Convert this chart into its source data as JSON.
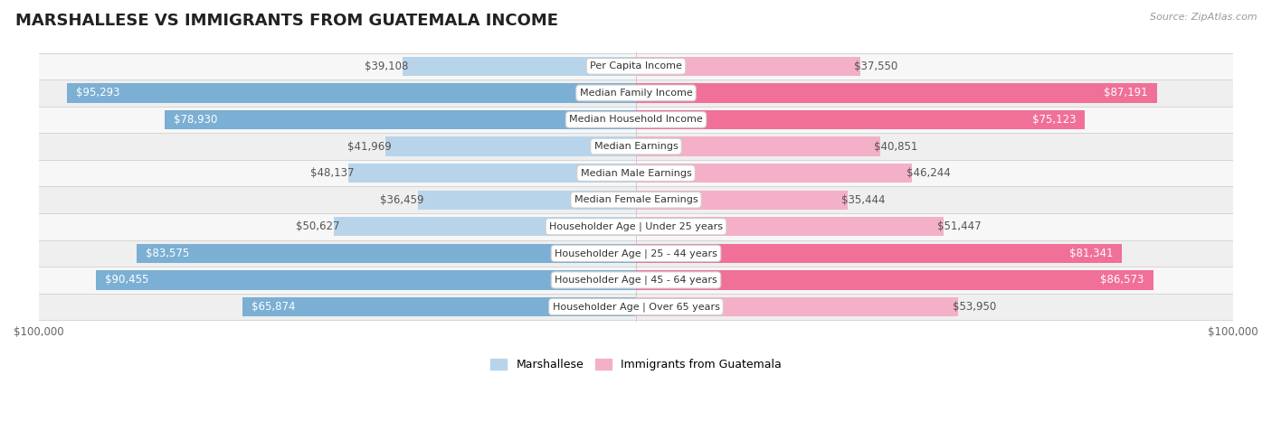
{
  "title": "MARSHALLESE VS IMMIGRANTS FROM GUATEMALA INCOME",
  "source": "Source: ZipAtlas.com",
  "categories": [
    "Per Capita Income",
    "Median Family Income",
    "Median Household Income",
    "Median Earnings",
    "Median Male Earnings",
    "Median Female Earnings",
    "Householder Age | Under 25 years",
    "Householder Age | 25 - 44 years",
    "Householder Age | 45 - 64 years",
    "Householder Age | Over 65 years"
  ],
  "marshallese_values": [
    39108,
    95293,
    78930,
    41969,
    48137,
    36459,
    50627,
    83575,
    90455,
    65874
  ],
  "guatemala_values": [
    37550,
    87191,
    75123,
    40851,
    46244,
    35444,
    51447,
    81341,
    86573,
    53950
  ],
  "max_value": 100000,
  "marshallese_color_large": "#7bafd4",
  "marshallese_color_small": "#b8d4ea",
  "guatemala_color_large": "#f07098",
  "guatemala_color_small": "#f4b0c8",
  "row_bg_light": "#f7f7f7",
  "row_bg_dark": "#efefef",
  "row_border_color": "#d0d0d0",
  "category_box_facecolor": "#ffffff",
  "category_box_edgecolor": "#cccccc",
  "title_fontsize": 13,
  "label_fontsize": 8.5,
  "category_fontsize": 8,
  "legend_marshallese": "Marshallese",
  "legend_guatemala": "Immigrants from Guatemala",
  "value_label_dark": "#555555",
  "value_label_white": "#ffffff",
  "axis_label": "$100,000",
  "large_threshold": 60000
}
